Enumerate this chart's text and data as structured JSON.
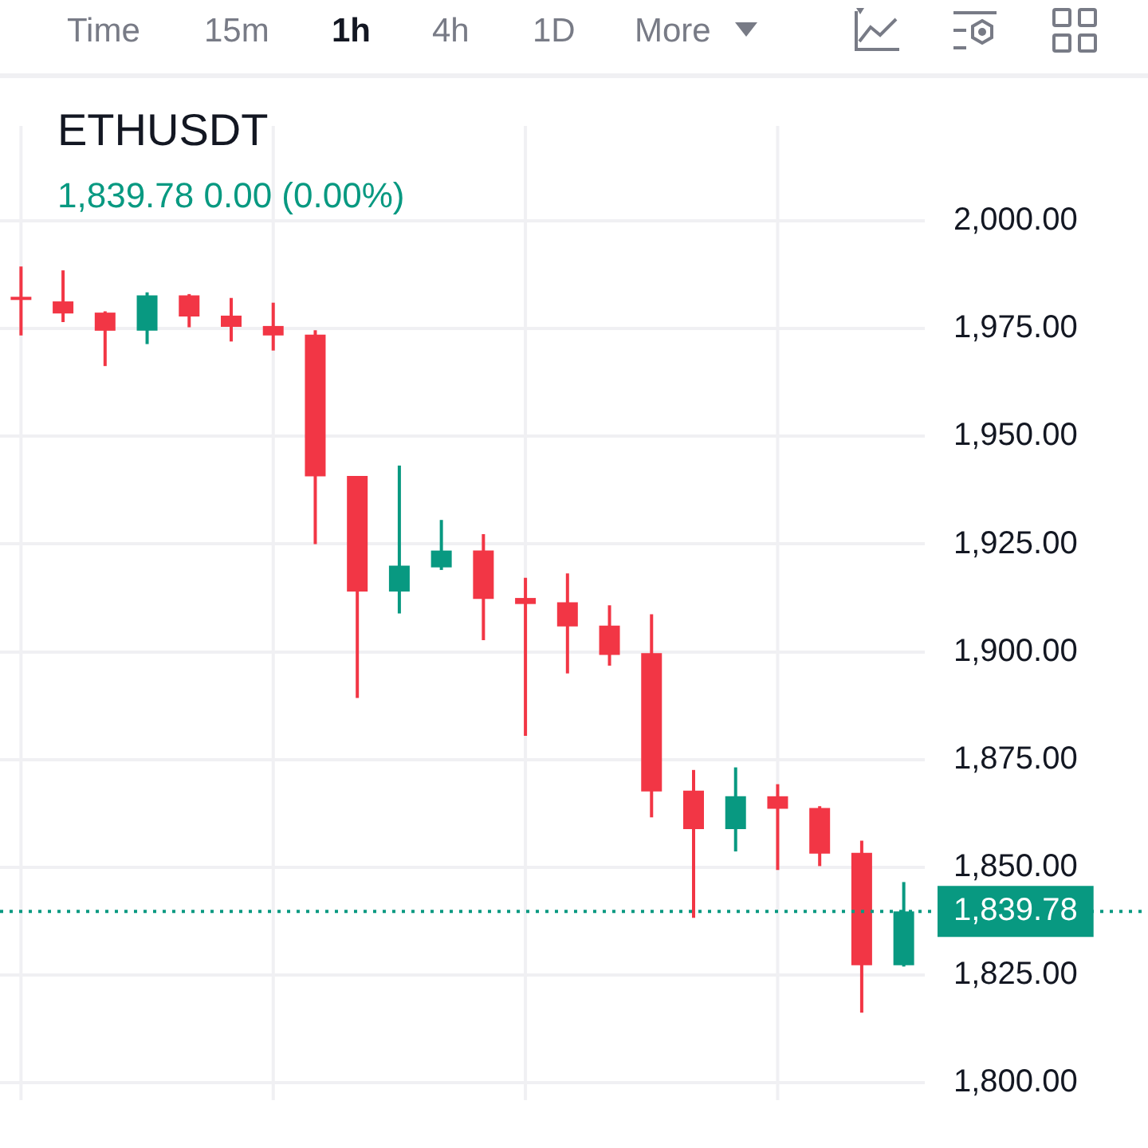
{
  "chart_data": {
    "type": "candlestick",
    "title": "ETHUSDT",
    "subtitle": "1,839.78  0.00 (0.00%)",
    "annotations": [
      "Time",
      "15m",
      "1h",
      "4h",
      "1D",
      "More"
    ],
    "categories": [
      null,
      null,
      null,
      null,
      null,
      null,
      null,
      null,
      null,
      null,
      null,
      null,
      null,
      null,
      null,
      null,
      null,
      null,
      null,
      null,
      null,
      null
    ],
    "ohlc": [
      [
        1982,
        1989.4,
        1973.4,
        1982
      ],
      [
        1981.3,
        1988.5,
        1976.5,
        1978.5
      ],
      [
        1978.7,
        1979,
        1966.3,
        1974.5
      ],
      [
        1974.5,
        1983.4,
        1971.4,
        1982.7
      ],
      [
        1982.7,
        1983,
        1975.3,
        1977.8
      ],
      [
        1978,
        1982.1,
        1972,
        1975.4
      ],
      [
        1975.6,
        1981,
        1969.9,
        1973.4
      ],
      [
        1973.6,
        1974.6,
        1925,
        1940.7
      ],
      [
        1940.8,
        1940.8,
        1889.3,
        1914
      ],
      [
        1914,
        1943.2,
        1908.9,
        1920
      ],
      [
        1919.6,
        1930.6,
        1919,
        1923.5
      ],
      [
        1923.5,
        1927.3,
        1902.7,
        1912.3
      ],
      [
        1912.5,
        1917.2,
        1880.5,
        1911.1
      ],
      [
        1911.5,
        1918.2,
        1895,
        1905.9
      ],
      [
        1906.1,
        1910.8,
        1896.8,
        1899.3
      ],
      [
        1899.7,
        1908.7,
        1861.6,
        1867.6
      ],
      [
        1867.8,
        1872.6,
        1838.3,
        1858.9
      ],
      [
        1858.9,
        1873.2,
        1853.7,
        1866.5
      ],
      [
        1866.5,
        1869.3,
        1849.4,
        1863.6
      ],
      [
        1863.8,
        1864.2,
        1850.3,
        1853.2
      ],
      [
        1853.4,
        1856.2,
        1816.3,
        1827.3
      ],
      [
        1827.3,
        1846.6,
        1827,
        1839.78
      ]
    ],
    "colors": [
      "#f23645",
      "#f23645",
      "#f23645",
      "#089981",
      "#f23645",
      "#f23645",
      "#f23645",
      "#f23645",
      "#f23645",
      "#089981",
      "#089981",
      "#f23645",
      "#f23645",
      "#f23645",
      "#f23645",
      "#f23645",
      "#f23645",
      "#089981",
      "#f23645",
      "#f23645",
      "#f23645",
      "#089981"
    ],
    "ylim": [
      1796,
      2022
    ],
    "yticks": [
      {
        "value": 1800,
        "label": "1,800.00"
      },
      {
        "value": 1825,
        "label": "1,825.00"
      },
      {
        "value": 1850,
        "label": "1,850.00"
      },
      {
        "value": 1875,
        "label": "1,875.00"
      },
      {
        "value": 1900,
        "label": "1,900.00"
      },
      {
        "value": 1925,
        "label": "1,925.00"
      },
      {
        "value": 1950,
        "label": "1,950.00"
      },
      {
        "value": 1975,
        "label": "1,975.00"
      },
      {
        "value": 2000,
        "label": "2,000.00"
      }
    ],
    "ref_lines": [
      {
        "axis": "y",
        "value": 1839.78,
        "label": "1,839.78",
        "color": "#089981",
        "line_style": "dotted"
      }
    ],
    "grid": true
  }
}
